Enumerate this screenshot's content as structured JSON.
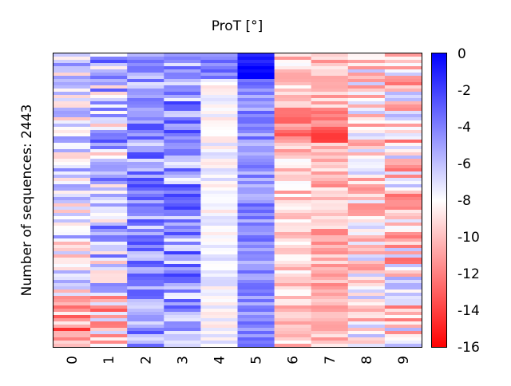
{
  "chart_data": {
    "type": "heatmap",
    "title": "ProT [°]",
    "ylabel": "Number of sequences: 2443",
    "xlabel": "",
    "columns": [
      "0",
      "1",
      "2",
      "3",
      "4",
      "5",
      "6",
      "7",
      "8",
      "9"
    ],
    "colorbar": {
      "min": -16,
      "max": 0,
      "ticks": [
        0,
        -2,
        -4,
        -6,
        -8,
        -10,
        -12,
        -14,
        -16
      ],
      "colors": {
        "max": "#0000ff",
        "mid": "#ffffff",
        "min": "#ff0000"
      }
    },
    "column_means": [
      -7.3,
      -6.2,
      -4.6,
      -4.8,
      -7.8,
      -4.4,
      -9.6,
      -10.2,
      -8.6,
      -9.0
    ],
    "column_spread": [
      3.2,
      3.8,
      2.6,
      3.0,
      1.2,
      1.6,
      1.8,
      1.8,
      3.0,
      3.8
    ]
  }
}
